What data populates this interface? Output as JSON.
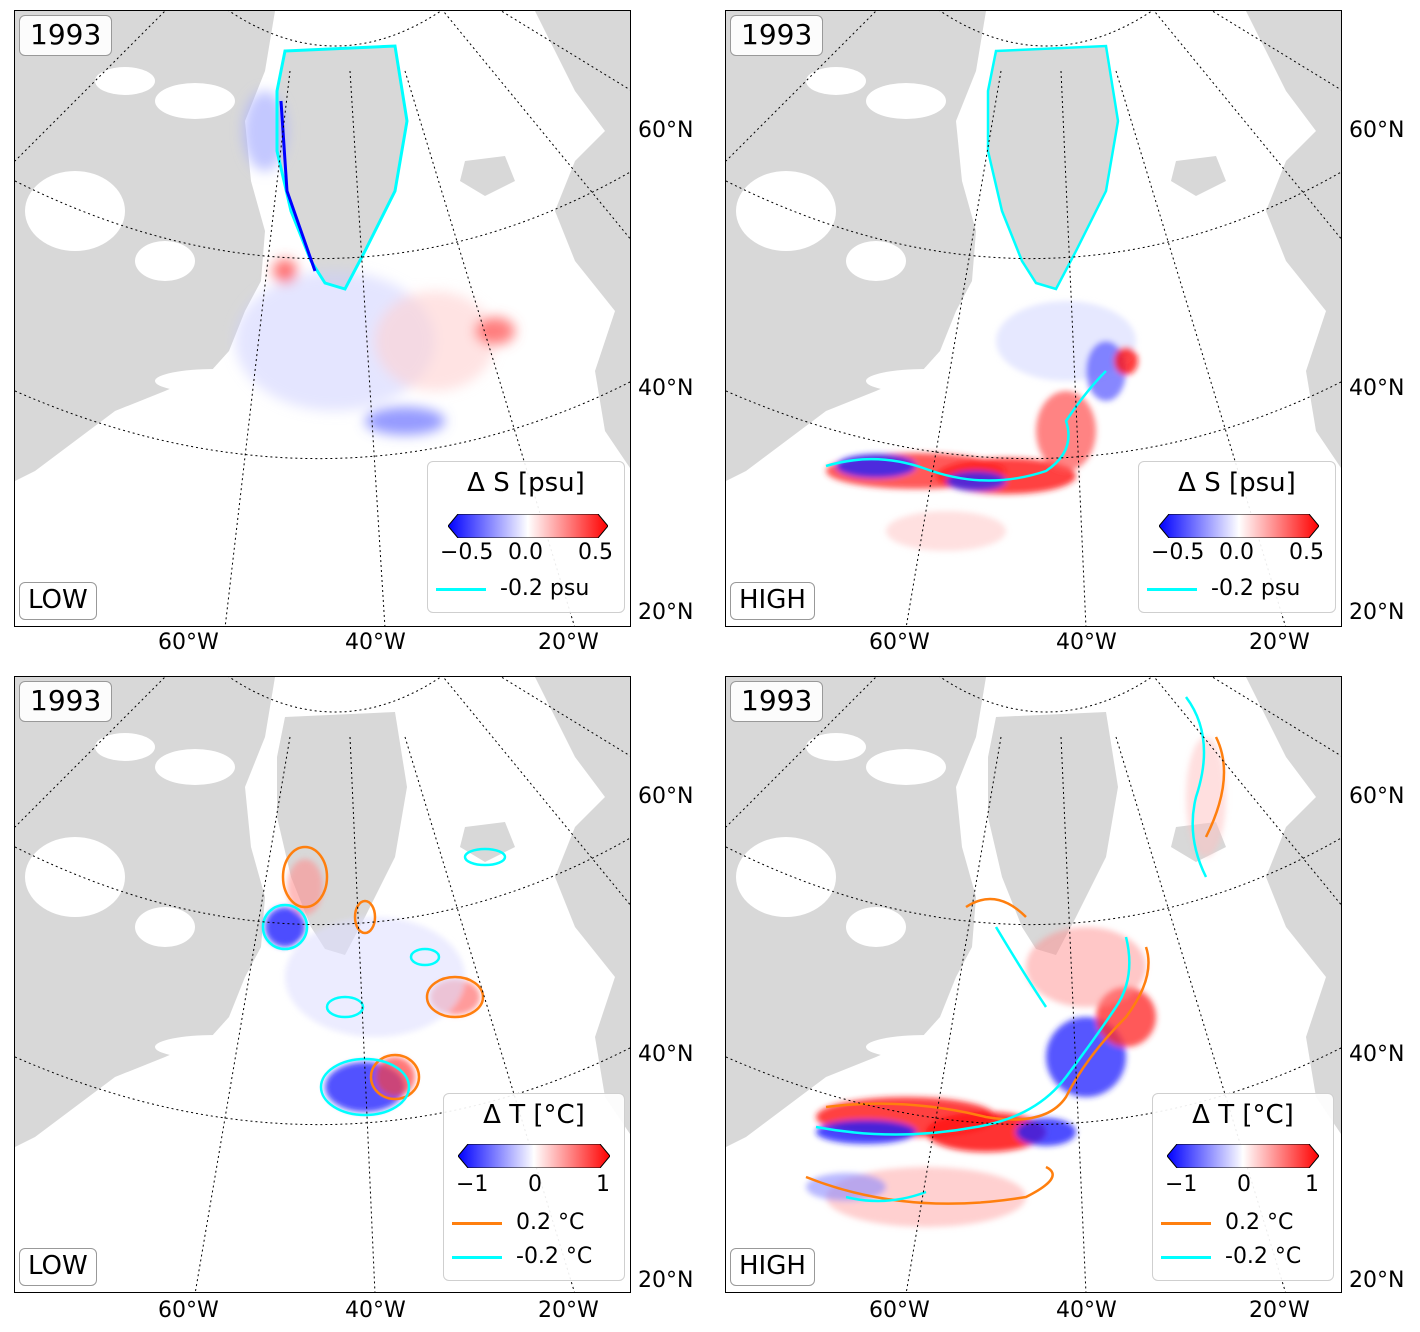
{
  "colors": {
    "land": "#d8d8d8",
    "ocean": "#ffffff",
    "negative": "#0000ff",
    "positive": "#ff0000",
    "contour_negative": "#00ffff",
    "contour_positive": "#ff7f0e"
  },
  "panels": [
    {
      "year": "1993",
      "label": "LOW",
      "legend_title": "Δ S [psu]",
      "ticks": [
        "−0.5",
        "0.0",
        "0.5"
      ],
      "lines": [
        {
          "label": "-0.2 psu",
          "color": "#00ffff"
        }
      ],
      "lat_labels": [
        "60°N",
        "40°N",
        "20°N"
      ],
      "lon_labels": [
        "60°W",
        "40°W",
        "20°W"
      ]
    },
    {
      "year": "1993",
      "label": "HIGH",
      "legend_title": "Δ S [psu]",
      "ticks": [
        "−0.5",
        "0.0",
        "0.5"
      ],
      "lines": [
        {
          "label": "-0.2 psu",
          "color": "#00ffff"
        }
      ],
      "lat_labels": [
        "60°N",
        "40°N",
        "20°N"
      ],
      "lon_labels": [
        "60°W",
        "40°W",
        "20°W"
      ]
    },
    {
      "year": "1993",
      "label": "LOW",
      "legend_title": "Δ T [°C]",
      "ticks": [
        "−1",
        "0",
        "1"
      ],
      "lines": [
        {
          "label": "0.2 °C",
          "color": "#ff7f0e"
        },
        {
          "label": "-0.2 °C",
          "color": "#00ffff"
        }
      ],
      "lat_labels": [
        "60°N",
        "40°N",
        "20°N"
      ],
      "lon_labels": [
        "60°W",
        "40°W",
        "20°W"
      ]
    },
    {
      "year": "1993",
      "label": "HIGH",
      "legend_title": "Δ T [°C]",
      "ticks": [
        "−1",
        "0",
        "1"
      ],
      "lines": [
        {
          "label": "0.2 °C",
          "color": "#ff7f0e"
        },
        {
          "label": "-0.2 °C",
          "color": "#00ffff"
        }
      ],
      "lat_labels": [
        "60°N",
        "40°N",
        "20°N"
      ],
      "lon_labels": [
        "60°W",
        "40°W",
        "20°W"
      ]
    }
  ]
}
